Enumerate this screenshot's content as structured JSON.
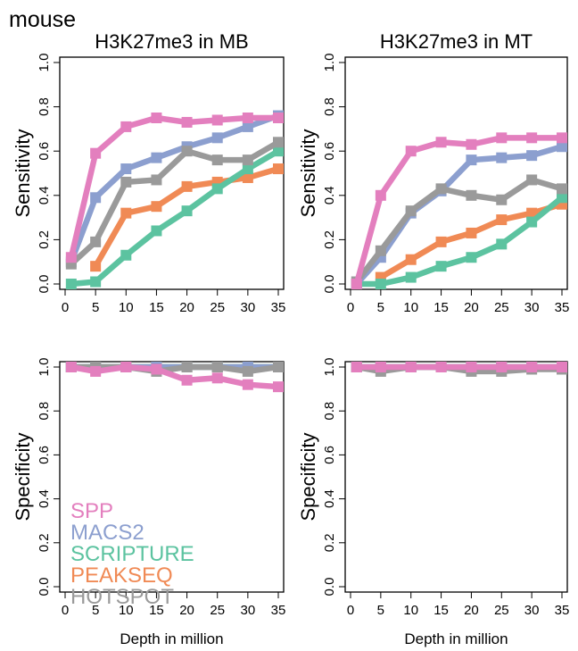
{
  "figure": {
    "label": "mouse",
    "xlabel": "Depth in million",
    "legend": [
      "SPP",
      "MACS2",
      "SCRIPTURE",
      "PEAKSEQ",
      "HOTSPOT"
    ]
  },
  "colors": {
    "SPP": "#e37fbe",
    "MACS2": "#8c9fcf",
    "SCRIPTURE": "#5cc3a0",
    "PEAKSEQ": "#f08a55",
    "HOTSPOT": "#9a9a9a"
  },
  "chart_data": [
    {
      "type": "line",
      "title": "H3K27me3 in MB",
      "xlabel": "",
      "ylabel": "Sensitivity",
      "x": [
        1,
        5,
        10,
        15,
        20,
        25,
        30,
        35
      ],
      "xticks": [
        "0",
        "5",
        "10",
        "15",
        "20",
        "25",
        "30",
        "35"
      ],
      "yticks": [
        "0.0",
        "0.2",
        "0.4",
        "0.6",
        "0.8",
        "1.0"
      ],
      "xlim": [
        0,
        35
      ],
      "ylim": [
        0,
        1
      ],
      "series": [
        {
          "name": "SPP",
          "values": [
            0.12,
            0.59,
            0.71,
            0.75,
            0.73,
            0.74,
            0.75,
            0.75
          ]
        },
        {
          "name": "MACS2",
          "values": [
            0.1,
            0.39,
            0.52,
            0.57,
            0.62,
            0.66,
            0.71,
            0.76
          ]
        },
        {
          "name": "SCRIPTURE",
          "values": [
            0.0,
            0.01,
            0.13,
            0.24,
            0.33,
            0.43,
            0.52,
            0.6
          ]
        },
        {
          "name": "PEAKSEQ",
          "values": [
            null,
            0.08,
            0.32,
            0.35,
            0.44,
            0.46,
            0.48,
            0.52
          ]
        },
        {
          "name": "HOTSPOT",
          "values": [
            0.09,
            0.19,
            0.46,
            0.47,
            0.6,
            0.56,
            0.56,
            0.64
          ]
        }
      ]
    },
    {
      "type": "line",
      "title": "H3K27me3 in MT",
      "xlabel": "",
      "ylabel": "Sensitivity",
      "x": [
        1,
        5,
        10,
        15,
        20,
        25,
        30,
        35
      ],
      "xticks": [
        "0",
        "5",
        "10",
        "15",
        "20",
        "25",
        "30",
        "35"
      ],
      "yticks": [
        "0.0",
        "0.2",
        "0.4",
        "0.6",
        "0.8",
        "1.0"
      ],
      "xlim": [
        0,
        35
      ],
      "ylim": [
        0,
        1
      ],
      "series": [
        {
          "name": "SPP",
          "values": [
            0.0,
            0.4,
            0.6,
            0.64,
            0.63,
            0.66,
            0.66,
            0.66
          ]
        },
        {
          "name": "MACS2",
          "values": [
            0.0,
            0.12,
            0.32,
            0.42,
            0.56,
            0.57,
            0.58,
            0.62
          ]
        },
        {
          "name": "SCRIPTURE",
          "values": [
            0.0,
            0.0,
            0.03,
            0.08,
            0.12,
            0.18,
            0.28,
            0.39
          ]
        },
        {
          "name": "PEAKSEQ",
          "values": [
            null,
            0.03,
            0.11,
            0.19,
            0.23,
            0.29,
            0.32,
            0.36
          ]
        },
        {
          "name": "HOTSPOT",
          "values": [
            0.01,
            0.15,
            0.33,
            0.43,
            0.4,
            0.38,
            0.47,
            0.43
          ]
        }
      ]
    },
    {
      "type": "line",
      "title": "",
      "xlabel": "Depth in million",
      "ylabel": "Specificity",
      "x": [
        1,
        5,
        10,
        15,
        20,
        25,
        30,
        35
      ],
      "xticks": [
        "0",
        "5",
        "10",
        "15",
        "20",
        "25",
        "30",
        "35"
      ],
      "yticks": [
        "0.0",
        "0.2",
        "0.4",
        "0.6",
        "0.8",
        "1.0"
      ],
      "xlim": [
        0,
        35
      ],
      "ylim": [
        0,
        1
      ],
      "series": [
        {
          "name": "SPP",
          "values": [
            1.0,
            0.98,
            1.0,
            0.99,
            0.94,
            0.95,
            0.92,
            0.91
          ]
        },
        {
          "name": "MACS2",
          "values": [
            1.0,
            1.0,
            1.0,
            1.0,
            1.0,
            1.0,
            1.0,
            1.0
          ]
        },
        {
          "name": "SCRIPTURE",
          "values": [
            1.0,
            1.0,
            1.0,
            1.0,
            1.0,
            1.0,
            1.0,
            1.0
          ]
        },
        {
          "name": "PEAKSEQ",
          "values": [
            null,
            1.0,
            1.0,
            1.0,
            1.0,
            1.0,
            1.0,
            1.0
          ]
        },
        {
          "name": "HOTSPOT",
          "values": [
            1.0,
            1.0,
            1.0,
            0.98,
            1.0,
            1.0,
            0.98,
            1.0
          ]
        }
      ]
    },
    {
      "type": "line",
      "title": "",
      "xlabel": "Depth in million",
      "ylabel": "Specificity",
      "x": [
        1,
        5,
        10,
        15,
        20,
        25,
        30,
        35
      ],
      "xticks": [
        "0",
        "5",
        "10",
        "15",
        "20",
        "25",
        "30",
        "35"
      ],
      "yticks": [
        "0.0",
        "0.2",
        "0.4",
        "0.6",
        "0.8",
        "1.0"
      ],
      "xlim": [
        0,
        35
      ],
      "ylim": [
        0,
        1
      ],
      "series": [
        {
          "name": "SPP",
          "values": [
            1.0,
            1.0,
            1.0,
            1.0,
            1.0,
            1.0,
            1.0,
            1.0
          ]
        },
        {
          "name": "MACS2",
          "values": [
            1.0,
            1.0,
            1.0,
            1.0,
            1.0,
            1.0,
            1.0,
            1.0
          ]
        },
        {
          "name": "SCRIPTURE",
          "values": [
            1.0,
            1.0,
            1.0,
            1.0,
            1.0,
            1.0,
            1.0,
            1.0
          ]
        },
        {
          "name": "PEAKSEQ",
          "values": [
            null,
            1.0,
            1.0,
            1.0,
            1.0,
            1.0,
            1.0,
            1.0
          ]
        },
        {
          "name": "HOTSPOT",
          "values": [
            1.0,
            0.98,
            1.0,
            1.0,
            0.98,
            0.98,
            0.99,
            0.99
          ]
        }
      ]
    }
  ]
}
